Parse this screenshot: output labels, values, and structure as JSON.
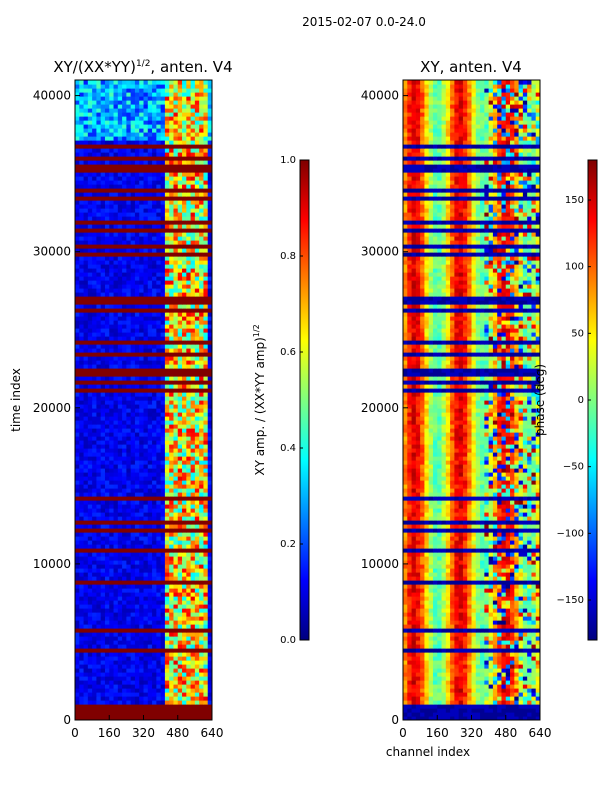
{
  "figure": {
    "suptitle": "2015-02-07 0.0-24.0"
  },
  "chart_data": [
    {
      "type": "heatmap",
      "title": "XY/(XX*YY)",
      "title_exponent": "1/2",
      "title_suffix": ", anten. V4",
      "xlabel": "",
      "ylabel": "time index",
      "xlim": [
        0,
        640
      ],
      "ylim": [
        0,
        41000
      ],
      "x_ticks": [
        0,
        160,
        320,
        480,
        640
      ],
      "y_ticks": [
        0,
        10000,
        20000,
        30000,
        40000
      ],
      "colormap": "jet",
      "colorbar": {
        "label": "XY amp. / (XX*YY amp)",
        "label_exponent": "1/2",
        "range": [
          0.0,
          1.0
        ],
        "ticks": [
          "0.0",
          "0.2",
          "0.4",
          "0.6",
          "0.8",
          "1.0"
        ]
      },
      "description_values": {
        "background_level": 0.05,
        "flagged_value": 1.0,
        "high_channel_band": [
          420,
          610
        ],
        "low_time_band": [
          1000,
          4000
        ]
      }
    },
    {
      "type": "heatmap",
      "title": "XY, anten. V4",
      "xlabel": "channel index",
      "ylabel": "",
      "xlim": [
        0,
        640
      ],
      "ylim": [
        0,
        41000
      ],
      "x_ticks": [
        0,
        160,
        320,
        480,
        640
      ],
      "y_ticks": [
        0,
        10000,
        20000,
        30000,
        40000
      ],
      "colormap": "jet",
      "colorbar": {
        "label": "phase (deg)",
        "range": [
          -180,
          180
        ],
        "ticks": [
          "150",
          "100",
          "50",
          "0",
          "−50",
          "−100",
          "−150"
        ],
        "tick_values": [
          150,
          100,
          50,
          0,
          -50,
          -100,
          -150
        ]
      }
    }
  ],
  "colors": {
    "jet_dark_blue": "#00008f",
    "jet_dark_red": "#800000",
    "axes_frame": "#000000"
  }
}
